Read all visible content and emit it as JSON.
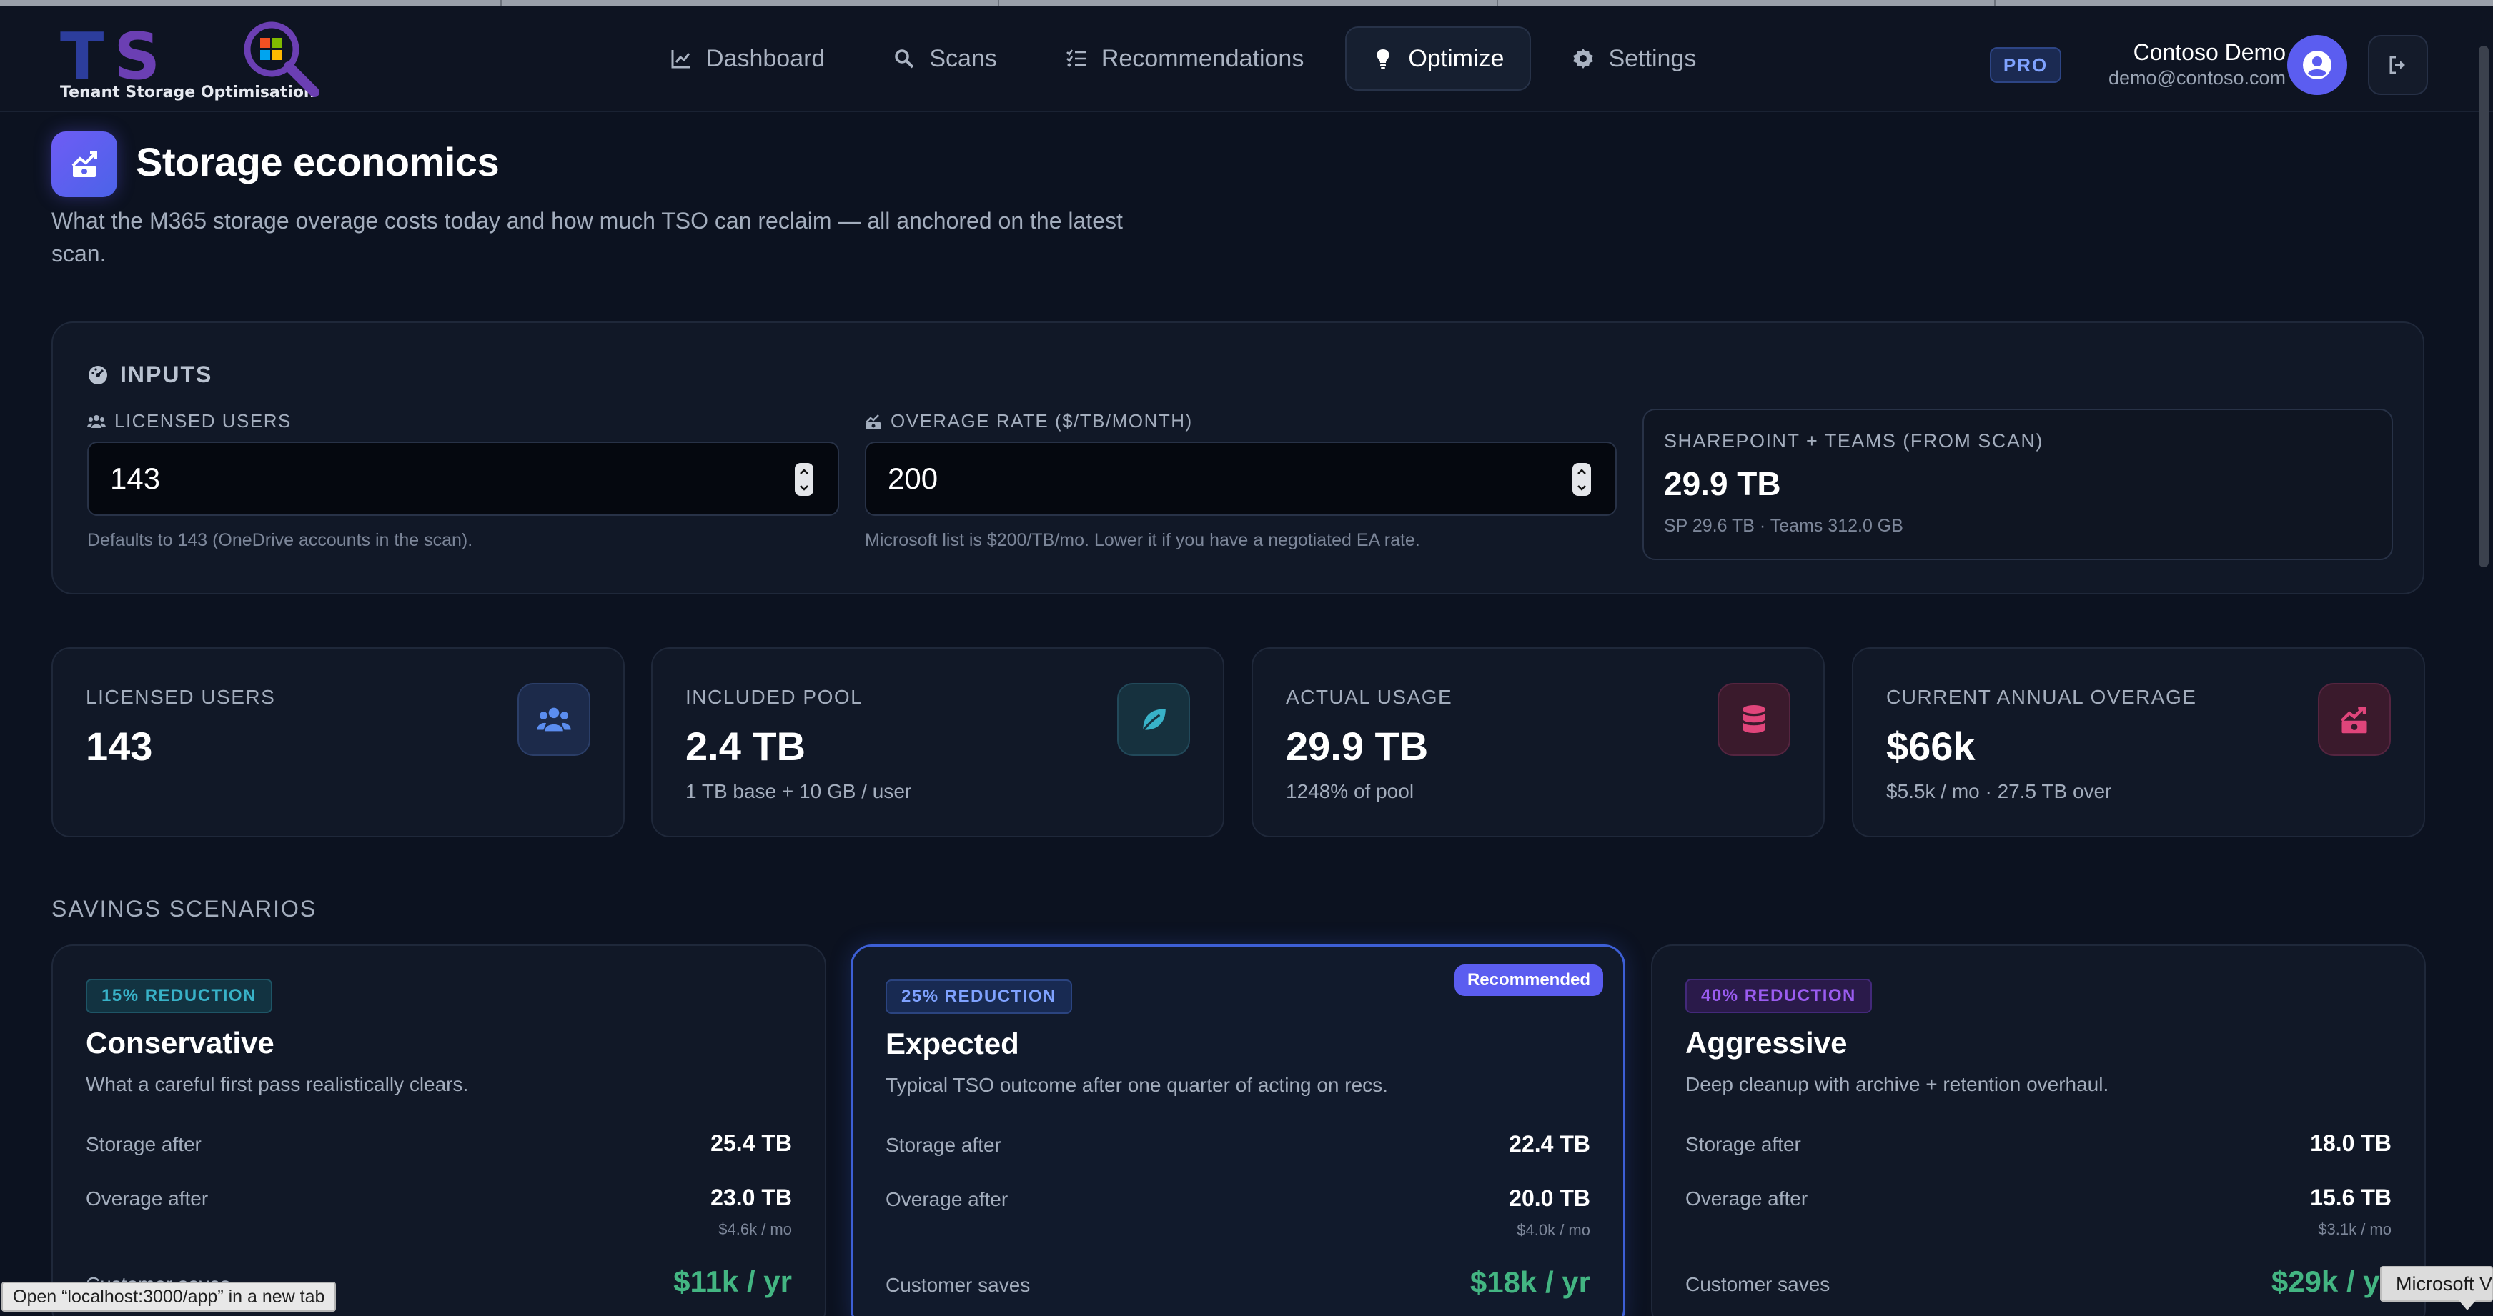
{
  "brand": {
    "letters": [
      "T",
      "S"
    ],
    "tagline": "Tenant Storage Optimisation",
    "colors": {
      "primary": "#5b5df0",
      "accent_green": "#43b582",
      "bg": "#0c1220"
    }
  },
  "nav": {
    "items": [
      {
        "label": "Dashboard",
        "icon": "chart-line-icon"
      },
      {
        "label": "Scans",
        "icon": "magnifier-icon"
      },
      {
        "label": "Recommendations",
        "icon": "checklist-icon"
      },
      {
        "label": "Optimize",
        "icon": "lightbulb-icon",
        "active": true
      },
      {
        "label": "Settings",
        "icon": "gear-icon"
      }
    ],
    "plan_badge": "PRO",
    "user_name": "Contoso Demo",
    "user_email": "demo@contoso.com",
    "avatar_icon": "user-circle-icon",
    "logout_icon": "sign-out-icon"
  },
  "page": {
    "title": "Storage economics",
    "subtitle": "What the M365 storage overage costs today and how much TSO can reclaim — all anchored on the latest scan.",
    "icon": "chart-money-icon"
  },
  "inputs": {
    "title": "INPUTS",
    "users": {
      "label": "LICENSED USERS",
      "value": "143",
      "help": "Defaults to 143 (OneDrive accounts in the scan)."
    },
    "rate": {
      "label": "OVERAGE RATE ($/TB/MONTH)",
      "value": "200",
      "help": "Microsoft list is $200/TB/mo. Lower it if you have a negotiated EA rate."
    },
    "sharepoint": {
      "label": "SHAREPOINT + TEAMS (FROM SCAN)",
      "value": "29.9 TB",
      "sub": "SP 29.6 TB · Teams 312.0 GB"
    }
  },
  "stats": [
    {
      "label": "LICENSED USERS",
      "value": "143",
      "sub": "",
      "icon": "users-icon",
      "color": "#5b8def"
    },
    {
      "label": "INCLUDED POOL",
      "value": "2.4 TB",
      "sub": "1 TB base + 10 GB / user",
      "icon": "leaf-icon",
      "color": "#38b2c8"
    },
    {
      "label": "ACTUAL USAGE",
      "value": "29.9 TB",
      "sub": "1248% of pool",
      "icon": "database-icon",
      "color": "#e0457b"
    },
    {
      "label": "CURRENT ANNUAL OVERAGE",
      "value": "$66k",
      "sub": "$5.5k / mo · 27.5 TB over",
      "icon": "chart-money-icon",
      "color": "#e0457b"
    }
  ],
  "scenarios_title": "SAVINGS SCENARIOS",
  "scenarios": [
    {
      "badge": "15% REDUCTION",
      "name": "Conservative",
      "desc": "What a careful first pass realistically clears.",
      "storage_label": "Storage after",
      "storage": "25.4 TB",
      "overage_label": "Overage after",
      "overage": "23.0 TB",
      "overage_monthly": "$4.6k / mo",
      "saves_label": "Customer saves",
      "saves": "$11k / yr",
      "badge_color": "#38b2c8",
      "recommended": false
    },
    {
      "badge": "25% REDUCTION",
      "name": "Expected",
      "desc": "Typical TSO outcome after one quarter of acting on recs.",
      "storage_label": "Storage after",
      "storage": "22.4 TB",
      "overage_label": "Overage after",
      "overage": "20.0 TB",
      "overage_monthly": "$4.0k / mo",
      "saves_label": "Customer saves",
      "saves": "$18k / yr",
      "badge_color": "#5b8def",
      "recommended": true,
      "recommended_label": "Recommended"
    },
    {
      "badge": "40% REDUCTION",
      "name": "Aggressive",
      "desc": "Deep cleanup with archive + retention overhaul.",
      "storage_label": "Storage after",
      "storage": "18.0 TB",
      "overage_label": "Overage after",
      "overage": "15.6 TB",
      "overage_monthly": "$3.1k / mo",
      "saves_label": "Customer saves",
      "saves": "$29k / yr",
      "badge_color": "#9a5cf0",
      "recommended": false
    }
  ],
  "browser": {
    "status_text": "Open “localhost:3000/app” in a new tab",
    "tooltip_text": "Microsoft V"
  }
}
